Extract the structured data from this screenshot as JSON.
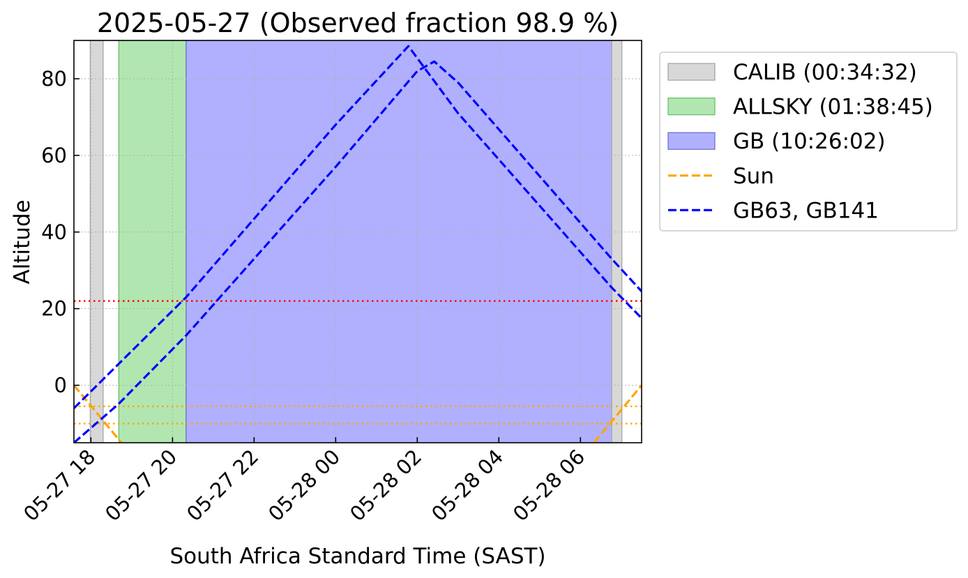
{
  "chart_data": {
    "type": "area",
    "title": "2025-05-27 (Observed fraction 98.9 %)",
    "xlabel": "South Africa Standard Time (SAST)",
    "ylabel": "Altitude",
    "xlim": [
      "2025-05-27 17:35",
      "2025-05-28 07:30"
    ],
    "ylim": [
      -15,
      90
    ],
    "grid": true,
    "legend_position": "outside-right",
    "x_ticks": [
      {
        "value": "2025-05-27 18:00",
        "label": "05-27 18"
      },
      {
        "value": "2025-05-27 20:00",
        "label": "05-27 20"
      },
      {
        "value": "2025-05-27 22:00",
        "label": "05-27 22"
      },
      {
        "value": "2025-05-28 00:00",
        "label": "05-28 00"
      },
      {
        "value": "2025-05-28 02:00",
        "label": "05-28 02"
      },
      {
        "value": "2025-05-28 04:00",
        "label": "05-28 04"
      },
      {
        "value": "2025-05-28 06:00",
        "label": "05-28 06"
      }
    ],
    "y_ticks": [
      0,
      20,
      40,
      60,
      80
    ],
    "spans": [
      {
        "label": "CALIB (00:34:32)",
        "color": "#d8d8d8",
        "edge": "#a0a0a0",
        "x_start": "2025-05-27 17:59",
        "x_end": "2025-05-27 18:18"
      },
      {
        "label": "ALLSKY (01:38:45)",
        "color": "#b1e6b1",
        "edge": "#5fbf5f",
        "x_start": "2025-05-27 18:41",
        "x_end": "2025-05-27 20:20"
      },
      {
        "label": "GB (10:26:02)",
        "color": "#b0b0ff",
        "edge": "#6a6acc",
        "x_start": "2025-05-27 20:20",
        "x_end": "2025-05-28 06:46"
      },
      {
        "span_of": "CALIB (00:34:32)",
        "color": "#d8d8d8",
        "edge": "#a0a0a0",
        "x_start": "2025-05-28 06:46",
        "x_end": "2025-05-28 07:01"
      }
    ],
    "series": [
      {
        "name": "Sun",
        "color": "#ffa500",
        "style": "dashed",
        "segments": [
          [
            [
              "2025-05-27 17:35",
              0.0
            ],
            [
              "2025-05-27 18:45",
              -15.0
            ]
          ],
          [
            [
              "2025-05-28 06:20",
              -15.0
            ],
            [
              "2025-05-28 07:30",
              0.0
            ]
          ]
        ]
      },
      {
        "name": "GB63, GB141",
        "color": "#0000ff",
        "style": "dashed",
        "segments": [
          [
            [
              "2025-05-27 17:35",
              -6.0
            ],
            [
              "2025-05-27 20:20",
              23.0
            ],
            [
              "2025-05-28 00:00",
              68.0
            ],
            [
              "2025-05-28 01:47",
              88.5
            ],
            [
              "2025-05-28 03:00",
              71.0
            ],
            [
              "2025-05-28 06:46",
              25.5
            ],
            [
              "2025-05-28 07:30",
              17.5
            ]
          ],
          [
            [
              "2025-05-27 17:35",
              -15.0
            ],
            [
              "2025-05-27 18:40",
              -5.0
            ],
            [
              "2025-05-27 20:20",
              13.0
            ],
            [
              "2025-05-28 00:00",
              57.0
            ],
            [
              "2025-05-28 02:00",
              82.0
            ],
            [
              "2025-05-28 02:25",
              84.5
            ],
            [
              "2025-05-28 03:00",
              79.0
            ],
            [
              "2025-05-28 06:46",
              33.0
            ],
            [
              "2025-05-28 07:30",
              24.5
            ]
          ]
        ]
      }
    ],
    "hlines": [
      {
        "y": 22,
        "color": "#ff0000",
        "style": "dotted"
      },
      {
        "y": -5.5,
        "color": "#ffa500",
        "style": "dotted"
      },
      {
        "y": -10,
        "color": "#ffa500",
        "style": "dotted"
      }
    ],
    "legend": [
      {
        "label": "CALIB (00:34:32)",
        "kind": "patch",
        "color": "#d8d8d8",
        "edge": "#a0a0a0"
      },
      {
        "label": "ALLSKY (01:38:45)",
        "kind": "patch",
        "color": "#b1e6b1",
        "edge": "#5fbf5f"
      },
      {
        "label": "GB (10:26:02)",
        "kind": "patch",
        "color": "#b0b0ff",
        "edge": "#6a6acc"
      },
      {
        "label": "Sun",
        "kind": "line",
        "color": "#ffa500"
      },
      {
        "label": "GB63, GB141",
        "kind": "line",
        "color": "#0000ff"
      }
    ]
  }
}
